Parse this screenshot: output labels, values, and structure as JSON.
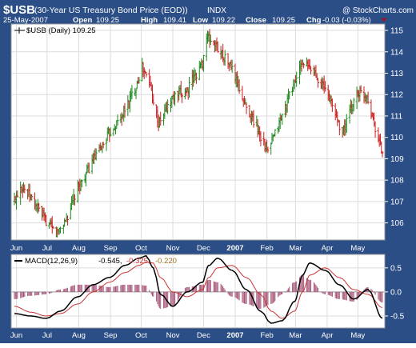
{
  "header": {
    "symbol": "$USB",
    "name": "(30-Year US Treasury Bond Price (EOD))",
    "exchange": "INDX",
    "watermark": "@ StockCharts.com",
    "date": "25-May-2007",
    "open_label": "Open",
    "open": "109.25",
    "high_label": "High",
    "high": "109.41",
    "low_label": "Low",
    "low": "109.22",
    "close_label": "Close",
    "close": "109.25",
    "chg_label": "Chg",
    "chg": "-0.03 (-0.03%)"
  },
  "price_panel": {
    "legend_label": "$USB (Daily) 109.25",
    "y_ticks": [
      "115",
      "114",
      "113",
      "112",
      "111",
      "110",
      "109",
      "108",
      "107",
      "106"
    ]
  },
  "macd_panel": {
    "legend_label": "MACD(12,26,9)",
    "legend_values": [
      "-0.545,",
      "-0.325,",
      "-0.220"
    ],
    "y_ticks": [
      "0.5",
      "0.0",
      "-0.5"
    ]
  },
  "x_labels": [
    "Jun",
    "Jul",
    "Aug",
    "Sep",
    "Oct",
    "Nov",
    "Dec",
    "2007",
    "Feb",
    "Mar",
    "Apr",
    "May"
  ],
  "colors": {
    "frame": "#2c4e86",
    "panel_bg": "#ffffff",
    "up_bar": "#1f8a1f",
    "down_bar": "#cc1f1f",
    "macd_line": "#000000",
    "signal_line": "#cc3333",
    "histogram": "#a65578",
    "down_arrow": "#cc0000"
  },
  "chart_data": [
    {
      "type": "line",
      "title": "$USB (Daily) 109.25",
      "style": "ohlc-bars",
      "ylim": [
        105.2,
        115.3
      ],
      "price_scale": "right",
      "grid": true,
      "x_tick_labels": [
        "Jun",
        "Jul",
        "Aug",
        "Sep",
        "Oct",
        "Nov",
        "Dec",
        "2007",
        "Feb",
        "Mar",
        "Apr",
        "May"
      ],
      "series": [
        {
          "name": "$USB",
          "description": "approximate daily close, 2006-05-30 .. 2007-05-25",
          "x": [
            "2006-05-30",
            "2006-06-05",
            "2006-06-15",
            "2006-06-28",
            "2006-07-10",
            "2006-07-20",
            "2006-07-31",
            "2006-08-15",
            "2006-08-31",
            "2006-09-12",
            "2006-09-25",
            "2006-10-02",
            "2006-10-10",
            "2006-10-18",
            "2006-10-31",
            "2006-11-15",
            "2006-11-30",
            "2006-12-04",
            "2006-12-15",
            "2006-12-29",
            "2007-01-10",
            "2007-01-24",
            "2007-02-02",
            "2007-02-15",
            "2007-03-01",
            "2007-03-08",
            "2007-03-20",
            "2007-04-02",
            "2007-04-16",
            "2007-04-30",
            "2007-05-10",
            "2007-05-18",
            "2007-05-25"
          ],
          "y": [
            107.0,
            107.8,
            107.2,
            106.2,
            105.5,
            106.2,
            107.6,
            108.9,
            110.2,
            111.0,
            112.3,
            113.3,
            112.4,
            110.6,
            111.8,
            112.2,
            113.5,
            114.7,
            114.2,
            113.2,
            111.6,
            110.3,
            109.3,
            110.9,
            112.7,
            113.5,
            113.0,
            112.0,
            110.2,
            112.1,
            112.0,
            110.5,
            109.25
          ]
        }
      ]
    },
    {
      "type": "line",
      "title": "MACD(12,26,9)",
      "ylim": [
        -0.75,
        0.78
      ],
      "grid": true,
      "x_tick_labels": [
        "Jun",
        "Jul",
        "Aug",
        "Sep",
        "Oct",
        "Nov",
        "Dec",
        "2007",
        "Feb",
        "Mar",
        "Apr",
        "May"
      ],
      "x": [
        "2006-05-30",
        "2006-06-15",
        "2006-06-30",
        "2006-07-14",
        "2006-07-31",
        "2006-08-15",
        "2006-08-31",
        "2006-09-15",
        "2006-09-29",
        "2006-10-06",
        "2006-10-13",
        "2006-10-20",
        "2006-11-01",
        "2006-11-15",
        "2006-11-30",
        "2006-12-06",
        "2006-12-15",
        "2006-12-29",
        "2007-01-12",
        "2007-01-26",
        "2007-02-05",
        "2007-02-16",
        "2007-02-28",
        "2007-03-08",
        "2007-03-15",
        "2007-03-30",
        "2007-04-13",
        "2007-04-27",
        "2007-05-11",
        "2007-05-25"
      ],
      "series": [
        {
          "name": "MACD",
          "values": [
            -0.45,
            -0.5,
            -0.55,
            -0.4,
            -0.1,
            0.15,
            0.3,
            0.55,
            0.7,
            0.75,
            0.5,
            -0.05,
            -0.3,
            0.0,
            0.2,
            0.55,
            0.7,
            0.45,
            0.05,
            -0.4,
            -0.65,
            -0.6,
            -0.2,
            0.35,
            0.6,
            0.45,
            0.15,
            -0.15,
            0.05,
            -0.545
          ]
        },
        {
          "name": "Signal",
          "values": [
            -0.3,
            -0.42,
            -0.5,
            -0.45,
            -0.25,
            0.0,
            0.2,
            0.4,
            0.55,
            0.62,
            0.6,
            0.3,
            0.0,
            -0.1,
            0.05,
            0.3,
            0.5,
            0.55,
            0.3,
            -0.05,
            -0.4,
            -0.55,
            -0.4,
            0.0,
            0.35,
            0.5,
            0.3,
            0.05,
            -0.05,
            -0.325
          ]
        },
        {
          "name": "Histogram",
          "values": [
            -0.15,
            -0.08,
            -0.05,
            0.05,
            0.15,
            0.15,
            0.1,
            0.15,
            0.15,
            0.13,
            -0.1,
            -0.35,
            -0.3,
            0.1,
            0.15,
            0.25,
            0.2,
            -0.1,
            -0.25,
            -0.35,
            -0.25,
            -0.05,
            0.2,
            0.35,
            0.25,
            -0.05,
            -0.15,
            -0.2,
            0.1,
            -0.22
          ]
        }
      ]
    }
  ]
}
